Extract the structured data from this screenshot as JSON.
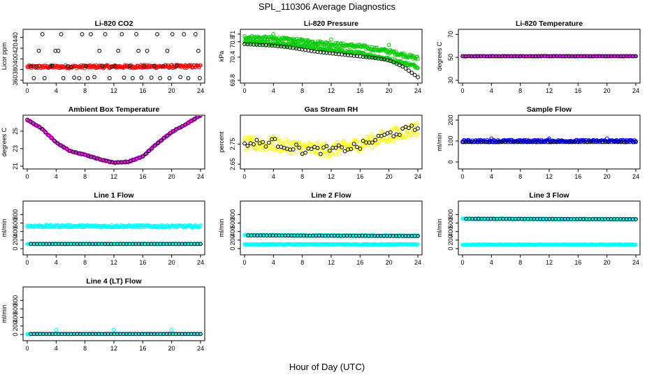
{
  "main_title": "SPL_110306  Average Diagnostics",
  "x_label": "Hour of Day (UTC)",
  "x_ticks": [
    0,
    4,
    8,
    12,
    16,
    20,
    24
  ],
  "colors": {
    "average_points": "#000000",
    "co2": "#ff0000",
    "pressure": "#00cc00",
    "temperature": "#ff00ff",
    "ambient": "#ff00ff",
    "rh": "#ffff00",
    "sample_flow": "#0000ff",
    "line_flow": "#00ffff"
  },
  "chart_data": [
    {
      "id": "co2",
      "type": "scatter",
      "title": "Li-820 CO2",
      "ylabel": "Licor ppm",
      "xlim": [
        0,
        24
      ],
      "ylim": [
        360,
        450
      ],
      "yticks": [
        360,
        380,
        400,
        420,
        440
      ],
      "series": [
        {
          "role": "raw",
          "color": "#ff0000",
          "band": {
            "center": [
              [
                0,
                385
              ],
              [
                24,
                386
              ]
            ],
            "spread": 3
          }
        },
        {
          "role": "avg",
          "color": "#000000",
          "points": [
            [
              0.5,
              386
            ],
            [
              0.9,
              364
            ],
            [
              1.3,
              386
            ],
            [
              1.6,
              415
            ],
            [
              2.1,
              446
            ],
            [
              2.4,
              364
            ],
            [
              3.2,
              386
            ],
            [
              3.5,
              387
            ],
            [
              3.9,
              415
            ],
            [
              4.3,
              415
            ],
            [
              4.7,
              446
            ],
            [
              5.0,
              364
            ],
            [
              5.6,
              386
            ],
            [
              6.1,
              385
            ],
            [
              6.5,
              365
            ],
            [
              7.2,
              364
            ],
            [
              7.6,
              446
            ],
            [
              8.1,
              387
            ],
            [
              8.4,
              364
            ],
            [
              8.8,
              446
            ],
            [
              9.3,
              366
            ],
            [
              10.0,
              415
            ],
            [
              10.4,
              387
            ],
            [
              10.8,
              446
            ],
            [
              11.4,
              364
            ],
            [
              11.7,
              385
            ],
            [
              12.2,
              386
            ],
            [
              12.6,
              415
            ],
            [
              13.1,
              446
            ],
            [
              13.4,
              365
            ],
            [
              14.2,
              387
            ],
            [
              14.6,
              364
            ],
            [
              15.1,
              446
            ],
            [
              15.4,
              415
            ],
            [
              15.8,
              365
            ],
            [
              16.2,
              386
            ],
            [
              16.6,
              415
            ],
            [
              17.2,
              365
            ],
            [
              17.6,
              387
            ],
            [
              18.0,
              446
            ],
            [
              18.4,
              364
            ],
            [
              18.8,
              386
            ],
            [
              19.4,
              415
            ],
            [
              19.7,
              364
            ],
            [
              20.1,
              446
            ],
            [
              20.7,
              387
            ],
            [
              21.2,
              366
            ],
            [
              21.7,
              446
            ],
            [
              22.3,
              364
            ],
            [
              23.3,
              446
            ],
            [
              23.7,
              415
            ],
            [
              23.9,
              364
            ]
          ]
        }
      ]
    },
    {
      "id": "pressure",
      "type": "scatter",
      "title": "Li-820 Pressure",
      "ylabel": "kPa",
      "xlim": [
        0,
        24
      ],
      "ylim": [
        69.8,
        71.05
      ],
      "yticks": [
        69.8,
        70.4,
        70.8,
        71.0
      ],
      "series": [
        {
          "role": "raw",
          "color": "#00cc00",
          "band": {
            "center": [
              [
                0,
                70.92
              ],
              [
                4,
                70.88
              ],
              [
                8,
                70.82
              ],
              [
                12,
                70.74
              ],
              [
                16,
                70.68
              ],
              [
                20,
                70.55
              ],
              [
                24,
                70.37
              ]
            ],
            "spread": 0.05
          }
        },
        {
          "role": "raw",
          "color": "#00cc00",
          "band": {
            "center": [
              [
                0,
                70.8
              ],
              [
                4,
                70.75
              ],
              [
                8,
                70.68
              ],
              [
                12,
                70.58
              ],
              [
                16,
                70.5
              ],
              [
                20,
                70.35
              ],
              [
                24,
                70.15
              ]
            ],
            "spread": 0.04
          }
        },
        {
          "role": "raw",
          "color": "#00cc00",
          "points": [
            [
              4.0,
              71.0
            ],
            [
              12.0,
              70.86
            ],
            [
              20.0,
              70.72
            ]
          ]
        },
        {
          "role": "avg",
          "color": "#000000",
          "line": [
            [
              0,
              70.74
            ],
            [
              2,
              70.72
            ],
            [
              4,
              70.7
            ],
            [
              6,
              70.66
            ],
            [
              8,
              70.6
            ],
            [
              10,
              70.54
            ],
            [
              12,
              70.5
            ],
            [
              14,
              70.46
            ],
            [
              16,
              70.42
            ],
            [
              18,
              70.38
            ],
            [
              20,
              70.32
            ],
            [
              22,
              70.15
            ],
            [
              24,
              69.88
            ]
          ],
          "count": 58
        }
      ]
    },
    {
      "id": "licor_temp",
      "type": "scatter",
      "title": "Li-820 Temperature",
      "ylabel": "degrees C",
      "xlim": [
        0,
        24
      ],
      "ylim": [
        30,
        72
      ],
      "yticks": [
        30,
        50,
        70
      ],
      "series": [
        {
          "role": "raw",
          "color": "#ff00ff",
          "band": {
            "center": [
              [
                0,
                51
              ],
              [
                24,
                51
              ]
            ],
            "spread": 0.3
          }
        },
        {
          "role": "avg",
          "color": "#000000",
          "line": [
            [
              0,
              51
            ],
            [
              24,
              51
            ]
          ],
          "count": 58
        }
      ]
    },
    {
      "id": "ambient_temp",
      "type": "scatter",
      "title": "Ambient Box Temperature",
      "ylabel": "degrees C",
      "xlim": [
        0,
        24
      ],
      "ylim": [
        21,
        26.5
      ],
      "yticks": [
        21,
        23,
        25
      ],
      "series": [
        {
          "role": "raw",
          "color": "#ff00ff",
          "band": {
            "center": [
              [
                0,
                26.3
              ],
              [
                2,
                25.3
              ],
              [
                4,
                23.7
              ],
              [
                6,
                22.7
              ],
              [
                8,
                22.3
              ],
              [
                10,
                21.8
              ],
              [
                12,
                21.4
              ],
              [
                14,
                21.5
              ],
              [
                16,
                22.1
              ],
              [
                18,
                23.6
              ],
              [
                20,
                24.9
              ],
              [
                22,
                25.8
              ],
              [
                24,
                26.8
              ]
            ],
            "spread": 0.08
          }
        },
        {
          "role": "avg",
          "color": "#000000",
          "line": [
            [
              0,
              26.3
            ],
            [
              2,
              25.3
            ],
            [
              4,
              23.7
            ],
            [
              6,
              22.7
            ],
            [
              8,
              22.3
            ],
            [
              10,
              21.8
            ],
            [
              12,
              21.4
            ],
            [
              14,
              21.5
            ],
            [
              16,
              22.1
            ],
            [
              18,
              23.6
            ],
            [
              20,
              24.9
            ],
            [
              22,
              25.8
            ],
            [
              24,
              26.8
            ]
          ],
          "count": 58
        }
      ]
    },
    {
      "id": "rh",
      "type": "scatter",
      "title": "Gas Stream RH",
      "ylabel": "percent",
      "xlim": [
        0,
        24
      ],
      "ylim": [
        2.64,
        2.88
      ],
      "yticks": [
        2.65,
        2.75
      ],
      "series": [
        {
          "role": "raw",
          "color": "#ffff00",
          "band": {
            "center": [
              [
                0,
                2.75
              ],
              [
                4,
                2.75
              ],
              [
                8,
                2.73
              ],
              [
                12,
                2.72
              ],
              [
                16,
                2.75
              ],
              [
                20,
                2.79
              ],
              [
                24,
                2.83
              ]
            ],
            "spread": 0.035
          }
        },
        {
          "role": "avg",
          "color": "#000000",
          "line": [
            [
              0,
              2.75
            ],
            [
              4,
              2.76
            ],
            [
              8,
              2.72
            ],
            [
              12,
              2.72
            ],
            [
              16,
              2.74
            ],
            [
              20,
              2.8
            ],
            [
              24,
              2.83
            ]
          ],
          "count": 58,
          "jitter": 0.02
        }
      ]
    },
    {
      "id": "sample_flow",
      "type": "scatter",
      "title": "Sample Flow",
      "ylabel": "ml/min",
      "xlim": [
        0,
        24
      ],
      "ylim": [
        -20,
        210
      ],
      "yticks": [
        0,
        100,
        200
      ],
      "series": [
        {
          "role": "raw",
          "color": "#0000ff",
          "band": {
            "center": [
              [
                0,
                100
              ],
              [
                24,
                100
              ]
            ],
            "spread": 6
          }
        },
        {
          "role": "avg",
          "color": "#000000",
          "line": [
            [
              0,
              95
            ],
            [
              24,
              95
            ]
          ],
          "count": 58
        },
        {
          "role": "raw",
          "color": "#0000ff",
          "points": [
            [
              4.0,
              112
            ],
            [
              12.0,
              112
            ],
            [
              20.0,
              112
            ]
          ]
        }
      ]
    },
    {
      "id": "line1",
      "type": "scatter",
      "title": "Line 1 Flow",
      "ylabel": "ml/min",
      "xlim": [
        0,
        24
      ],
      "ylim": [
        -80,
        1050
      ],
      "yticks": [
        0,
        200,
        400,
        600,
        800
      ],
      "series": [
        {
          "role": "raw",
          "color": "#00ffff",
          "band": {
            "center": [
              [
                0,
                530
              ],
              [
                24,
                520
              ]
            ],
            "spread": 30
          }
        },
        {
          "role": "raw",
          "color": "#00ffff",
          "band": {
            "center": [
              [
                0,
                110
              ],
              [
                24,
                110
              ]
            ],
            "spread": 6
          }
        },
        {
          "role": "avg",
          "color": "#000000",
          "line": [
            [
              0.5,
              110
            ],
            [
              24,
              110
            ]
          ],
          "count": 56
        }
      ]
    },
    {
      "id": "line2",
      "type": "scatter",
      "title": "Line 2 Flow",
      "ylabel": "ml/min",
      "xlim": [
        0,
        24
      ],
      "ylim": [
        -80,
        1050
      ],
      "yticks": [
        0,
        200,
        400,
        600,
        800
      ],
      "series": [
        {
          "role": "raw",
          "color": "#00ffff",
          "band": {
            "center": [
              [
                0,
                315
              ],
              [
                24,
                300
              ]
            ],
            "spread": 14
          }
        },
        {
          "role": "raw",
          "color": "#00ffff",
          "band": {
            "center": [
              [
                0,
                100
              ],
              [
                24,
                100
              ]
            ],
            "spread": 10
          }
        },
        {
          "role": "avg",
          "color": "#000000",
          "line": [
            [
              0.5,
              310
            ],
            [
              24,
              295
            ]
          ],
          "count": 56
        }
      ]
    },
    {
      "id": "line3",
      "type": "scatter",
      "title": "Line 3 Flow",
      "ylabel": "ml/min",
      "xlim": [
        0,
        24
      ],
      "ylim": [
        -80,
        1050
      ],
      "yticks": [
        0,
        200,
        400,
        600,
        800
      ],
      "series": [
        {
          "role": "raw",
          "color": "#00ffff",
          "band": {
            "center": [
              [
                0,
                700
              ],
              [
                24,
                690
              ]
            ],
            "spread": 12
          }
        },
        {
          "role": "raw",
          "color": "#00ffff",
          "band": {
            "center": [
              [
                0,
                95
              ],
              [
                24,
                95
              ]
            ],
            "spread": 8
          }
        },
        {
          "role": "avg",
          "color": "#000000",
          "line": [
            [
              0.5,
              700
            ],
            [
              24,
              690
            ]
          ],
          "count": 56
        }
      ]
    },
    {
      "id": "line4",
      "type": "scatter",
      "title": "Line 4 (LT) Flow",
      "ylabel": "ml/min",
      "xlim": [
        0,
        24
      ],
      "ylim": [
        -80,
        1050
      ],
      "yticks": [
        0,
        200,
        400,
        600,
        800
      ],
      "series": [
        {
          "role": "raw",
          "color": "#00ffff",
          "band": {
            "center": [
              [
                0,
                15
              ],
              [
                24,
                15
              ]
            ],
            "spread": 6
          }
        },
        {
          "role": "avg",
          "color": "#000000",
          "line": [
            [
              0.5,
              12
            ],
            [
              24,
              12
            ]
          ],
          "count": 56
        },
        {
          "role": "raw",
          "color": "#00ffff",
          "points": [
            [
              4.0,
              110
            ],
            [
              12.0,
              110
            ],
            [
              20.0,
              110
            ]
          ]
        }
      ]
    }
  ]
}
